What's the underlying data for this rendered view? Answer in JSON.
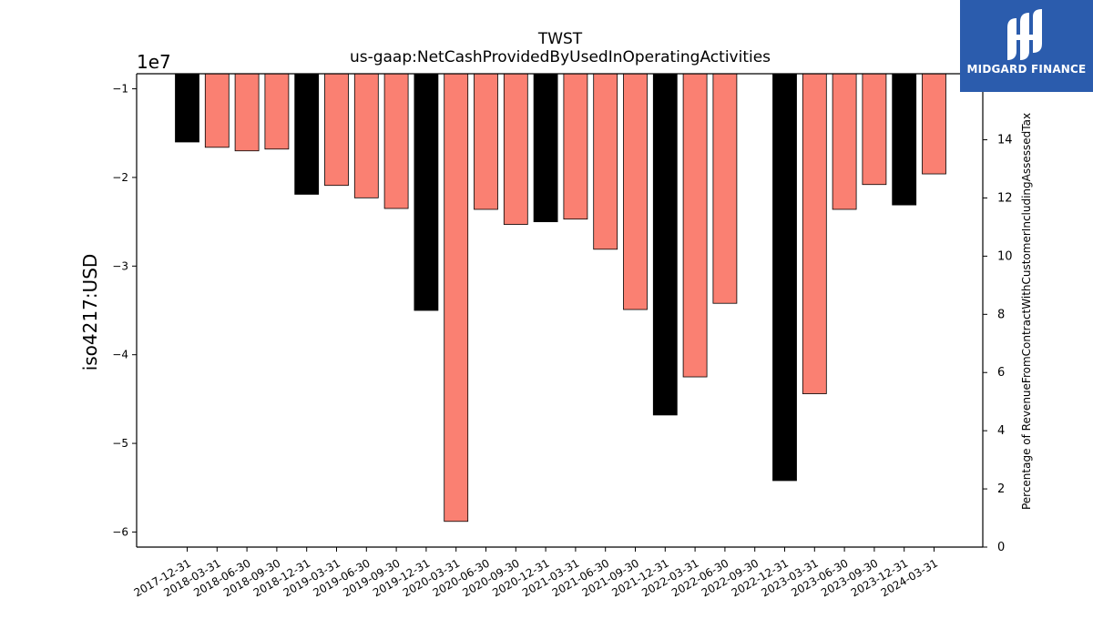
{
  "logo": {
    "text": "MIDGARD FINANCE",
    "icon": "midgard-logo-icon",
    "background": "#2b5cad"
  },
  "chart_data": {
    "type": "bar",
    "title": "TWST",
    "subtitle": "us-gaap:NetCashProvidedByUsedInOperatingActivities",
    "ylabel": "iso4217:USD",
    "ylabel_right": "Percentage of RevenueFromContractWithCustomerIncludingAssessedTax",
    "y_multiplier_label": "1e7",
    "ylim": [
      -6.17,
      -0.83
    ],
    "y_ticks": [
      -1,
      -2,
      -3,
      -4,
      -5,
      -6
    ],
    "y_right_ticks": [
      0,
      2,
      4,
      6,
      8,
      10,
      12,
      14
    ],
    "y_right_range": [
      0,
      16.27
    ],
    "grid": false,
    "categories": [
      "2017-12-31",
      "2018-03-31",
      "2018-06-30",
      "2018-09-30",
      "2018-12-31",
      "2019-03-31",
      "2019-06-30",
      "2019-09-30",
      "2019-12-31",
      "2020-03-31",
      "2020-06-30",
      "2020-09-30",
      "2020-12-31",
      "2021-03-31",
      "2021-06-30",
      "2021-09-30",
      "2021-12-31",
      "2022-03-31",
      "2022-06-30",
      "2022-09-30",
      "2022-12-31",
      "2023-03-31",
      "2023-06-30",
      "2023-09-30",
      "2023-12-31",
      "2024-03-31"
    ],
    "values": [
      -1.6,
      -1.66,
      -1.7,
      -1.68,
      -2.19,
      -2.09,
      -2.23,
      -2.35,
      -3.5,
      -5.88,
      -2.36,
      -2.53,
      -2.5,
      -2.47,
      -2.81,
      -3.49,
      -4.68,
      -4.25,
      -3.42,
      null,
      -5.42,
      -4.44,
      -2.36,
      -2.08,
      -2.31,
      -1.96
    ],
    "annual_flags": [
      true,
      false,
      false,
      false,
      true,
      false,
      false,
      false,
      true,
      false,
      false,
      false,
      true,
      false,
      false,
      false,
      true,
      false,
      false,
      false,
      true,
      false,
      false,
      false,
      true,
      false
    ],
    "colors": {
      "annual": "#000000",
      "quarterly": "#fa8072"
    }
  }
}
